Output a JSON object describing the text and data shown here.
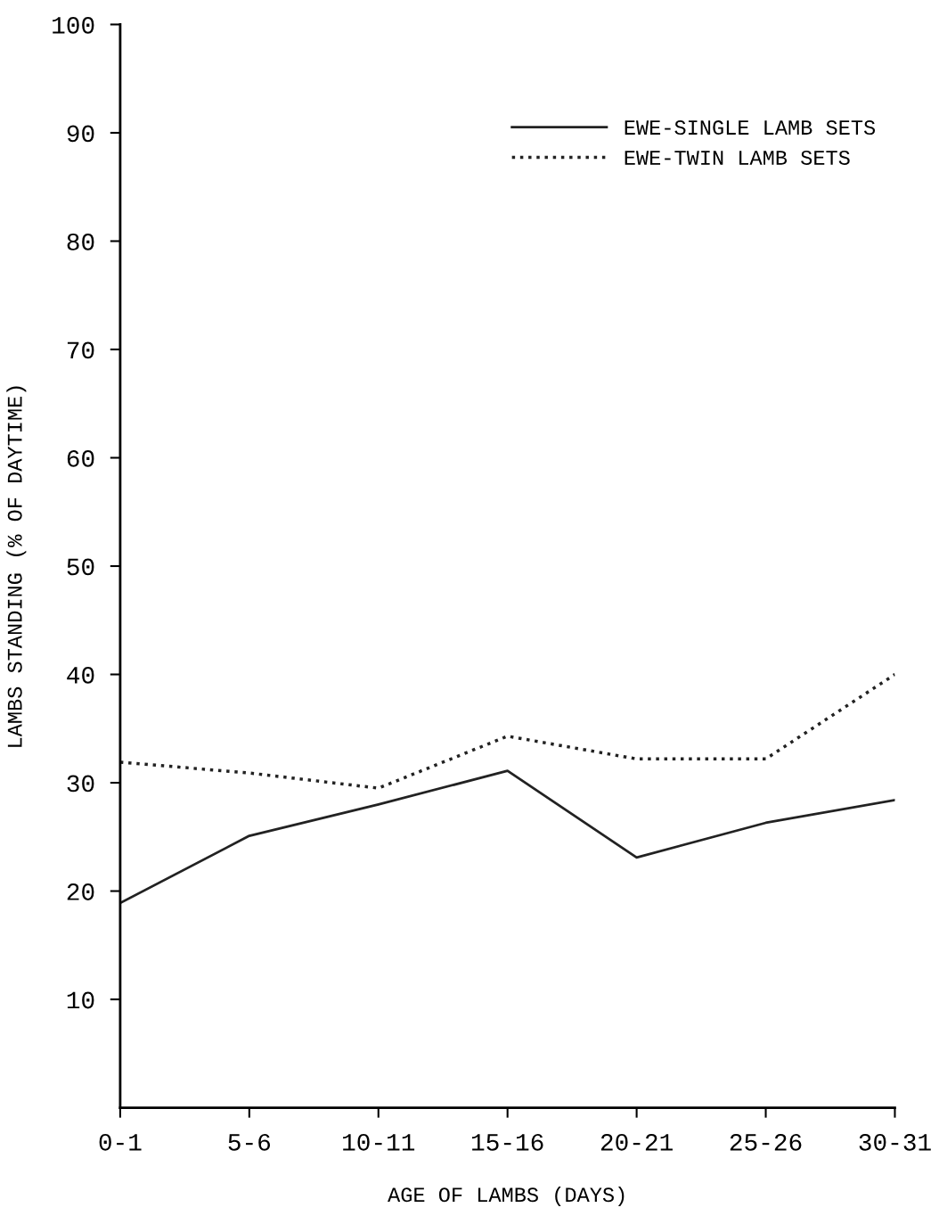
{
  "chart_data": {
    "type": "line",
    "xlabel": "AGE OF LAMBS (DAYS)",
    "ylabel": "LAMBS STANDING (% OF DAYTIME)",
    "categories": [
      "0-1",
      "5-6",
      "10-11",
      "15-16",
      "20-21",
      "25-26",
      "30-31"
    ],
    "series": [
      {
        "name": "EWE-SINGLE LAMB SETS",
        "color": "#222222",
        "line_style": "solid",
        "values": [
          18.9,
          25.1,
          28.0,
          31.1,
          23.1,
          26.3,
          28.4
        ]
      },
      {
        "name": "EWE-TWIN LAMB SETS",
        "color": "#222222",
        "line_style": "dotted",
        "values": [
          31.9,
          30.9,
          29.5,
          34.3,
          32.2,
          32.2,
          40.0
        ]
      }
    ],
    "ylim": [
      0,
      100
    ],
    "yticks": [
      10,
      20,
      30,
      40,
      50,
      60,
      70,
      80,
      90,
      100
    ],
    "grid": false,
    "legend": "top right",
    "marker": "none"
  }
}
